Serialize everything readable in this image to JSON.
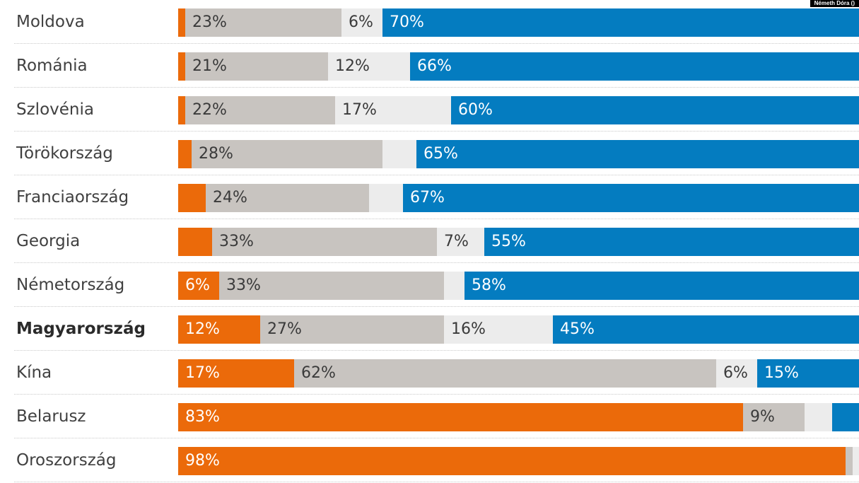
{
  "credit": "Németh Dóra ()",
  "colors": {
    "segments": [
      "#eb6a0a",
      "#c8c4c0",
      "#ececec",
      "#047cc0"
    ]
  },
  "chart_data": {
    "type": "bar",
    "orientation": "horizontal",
    "stacked": true,
    "xlim": [
      0,
      100
    ],
    "categories": [
      "Moldova",
      "Románia",
      "Szlovénia",
      "Törökország",
      "Franciaország",
      "Georgia",
      "Németország",
      "Magyarország",
      "Kína",
      "Belarusz",
      "Oroszország"
    ],
    "highlight": "Magyarország",
    "series": [
      {
        "values": [
          1,
          1,
          1,
          2,
          4,
          5,
          6,
          12,
          17,
          83,
          98
        ]
      },
      {
        "values": [
          23,
          21,
          22,
          28,
          24,
          33,
          33,
          27,
          62,
          9,
          1
        ]
      },
      {
        "values": [
          6,
          12,
          17,
          5,
          5,
          7,
          3,
          16,
          6,
          4,
          1
        ]
      },
      {
        "values": [
          70,
          66,
          60,
          65,
          67,
          55,
          58,
          45,
          15,
          4,
          0
        ]
      }
    ],
    "labels": [
      [
        "",
        "23%",
        "6%",
        "70%"
      ],
      [
        "",
        "21%",
        "12%",
        "66%"
      ],
      [
        "",
        "22%",
        "17%",
        "60%"
      ],
      [
        "",
        "28%",
        "",
        "65%"
      ],
      [
        "",
        "24%",
        "",
        "67%"
      ],
      [
        "",
        "33%",
        "7%",
        "55%"
      ],
      [
        "6%",
        "33%",
        "",
        "58%"
      ],
      [
        "12%",
        "27%",
        "16%",
        "45%"
      ],
      [
        "17%",
        "62%",
        "6%",
        "15%"
      ],
      [
        "83%",
        "9%",
        "",
        ""
      ],
      [
        "98%",
        "",
        "",
        ""
      ]
    ]
  }
}
